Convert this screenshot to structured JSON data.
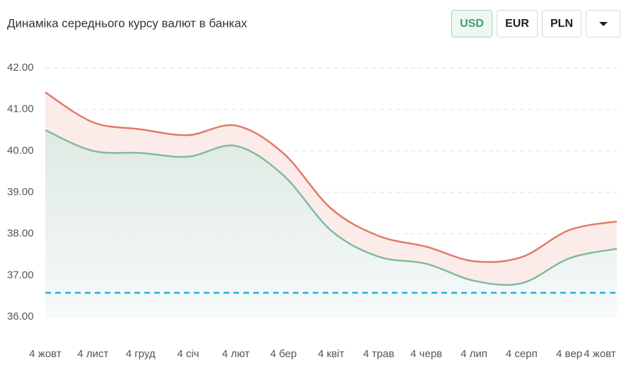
{
  "chart_data": {
    "type": "line",
    "title": "Динаміка середнього курсу валют в банках",
    "categories": [
      "4 жовт",
      "4 лист",
      "4 груд",
      "4 січ",
      "4 лют",
      "4 бер",
      "4 квіт",
      "4 трав",
      "4 черв",
      "4 лип",
      "4 серп",
      "4 вер",
      "4 жовт"
    ],
    "series": [
      {
        "color": "#e07a68",
        "values": [
          41.41,
          40.69,
          40.52,
          40.38,
          40.61,
          39.94,
          38.61,
          37.95,
          37.69,
          37.34,
          37.44,
          38.09,
          38.3
        ]
      },
      {
        "color": "#7fbba0",
        "values": [
          40.5,
          40.0,
          39.95,
          39.86,
          40.12,
          39.41,
          38.08,
          37.45,
          37.28,
          36.87,
          36.81,
          37.41,
          37.64
        ]
      }
    ],
    "reference_line": {
      "value": 36.58,
      "color": "#27aed6"
    },
    "ylim": [
      36,
      42
    ],
    "yticks": [
      {
        "value": 36,
        "label": "36.00"
      },
      {
        "value": 37,
        "label": "37.00"
      },
      {
        "value": 38,
        "label": "38.00"
      },
      {
        "value": 39,
        "label": "39.00"
      },
      {
        "value": 40,
        "label": "40.00"
      },
      {
        "value": 41,
        "label": "41.00"
      },
      {
        "value": 42,
        "label": "42.00"
      }
    ],
    "grid": true
  },
  "currency_buttons": [
    "USD",
    "EUR",
    "PLN"
  ],
  "active_button": 0
}
